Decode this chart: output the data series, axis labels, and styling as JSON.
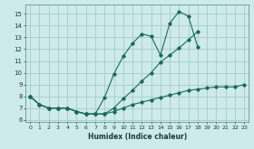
{
  "xlabel": "Humidex (Indice chaleur)",
  "bg_color": "#ceeaea",
  "grid_color": "#aacfcf",
  "line_color": "#1a6b5a",
  "xlim": [
    -0.5,
    23.5
  ],
  "ylim": [
    5.8,
    15.8
  ],
  "yticks": [
    6,
    7,
    8,
    9,
    10,
    11,
    12,
    13,
    14,
    15
  ],
  "xticks": [
    0,
    1,
    2,
    3,
    4,
    5,
    6,
    7,
    8,
    9,
    10,
    11,
    12,
    13,
    14,
    15,
    16,
    17,
    18,
    19,
    20,
    21,
    22,
    23
  ],
  "line1_x": [
    0,
    1,
    2,
    3,
    4,
    5,
    6,
    7,
    8,
    9,
    10,
    11,
    12,
    13,
    14,
    15,
    16,
    17,
    18,
    19,
    20,
    21,
    22,
    23
  ],
  "line1_y": [
    8.0,
    7.3,
    7.0,
    7.0,
    7.0,
    6.7,
    6.5,
    6.5,
    7.9,
    9.9,
    11.4,
    12.5,
    13.3,
    13.1,
    11.5,
    14.2,
    15.2,
    14.8,
    12.2,
    null,
    null,
    null,
    null,
    null
  ],
  "line2_x": [
    0,
    1,
    2,
    3,
    4,
    5,
    6,
    7,
    8,
    9,
    10,
    11,
    12,
    13,
    14,
    15,
    16,
    17,
    18,
    19,
    20,
    21,
    22,
    23
  ],
  "line2_y": [
    8.0,
    7.3,
    7.0,
    7.0,
    7.0,
    6.7,
    6.5,
    6.5,
    6.5,
    7.0,
    7.8,
    8.5,
    9.3,
    10.0,
    10.9,
    11.5,
    12.1,
    12.8,
    13.5,
    null,
    null,
    null,
    null,
    null
  ],
  "line3_x": [
    0,
    1,
    2,
    3,
    4,
    5,
    6,
    7,
    8,
    9,
    10,
    11,
    12,
    13,
    14,
    15,
    16,
    17,
    18,
    19,
    20,
    21,
    22,
    23
  ],
  "line3_y": [
    8.0,
    7.3,
    7.0,
    7.0,
    7.0,
    6.7,
    6.5,
    6.5,
    6.5,
    6.7,
    7.0,
    7.3,
    7.5,
    7.7,
    7.9,
    8.1,
    8.3,
    8.5,
    8.6,
    8.7,
    8.8,
    8.8,
    8.8,
    9.0
  ]
}
